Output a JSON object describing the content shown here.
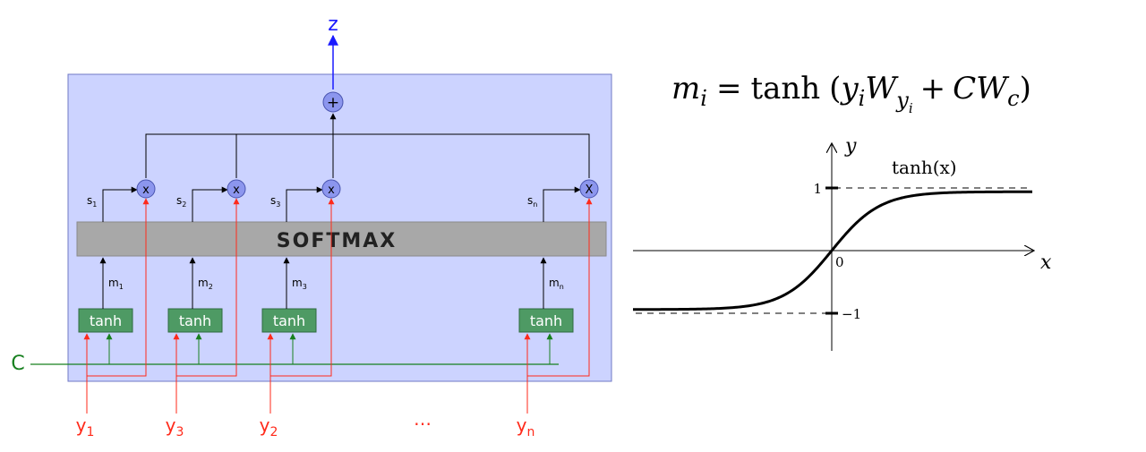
{
  "colors": {
    "panel_fill": "#ccd3ff",
    "panel_stroke": "#6f78c4",
    "softmax_fill": "#a8a8a8",
    "tanh_fill": "#4e9a64",
    "node_fill": "#8c96ee",
    "red": "#ff2a1a",
    "green": "#17801f",
    "blue": "#1a1aff",
    "black": "#000000"
  },
  "diagram": {
    "output_label": "z",
    "sum_symbol": "+",
    "softmax_label": "SOFTMAX",
    "context_label": "C",
    "ellipsis": "…",
    "units": [
      {
        "tanh": "tanh",
        "m": "m",
        "m_sub": "1",
        "s": "s",
        "s_sub": "1",
        "mult": "x",
        "y": "y",
        "y_sub": "1"
      },
      {
        "tanh": "tanh",
        "m": "m",
        "m_sub": "2",
        "s": "s",
        "s_sub": "2",
        "mult": "x",
        "y": "y",
        "y_sub": "3"
      },
      {
        "tanh": "tanh",
        "m": "m",
        "m_sub": "3",
        "s": "s",
        "s_sub": "3",
        "mult": "x",
        "y": "y",
        "y_sub": "2"
      },
      {
        "tanh": "tanh",
        "m": "m",
        "m_sub": "n",
        "s": "s",
        "s_sub": "n",
        "mult": "X",
        "y": "y",
        "y_sub": "n"
      }
    ]
  },
  "formula": {
    "lhs": "m",
    "lhs_sub": "i",
    "eq": "=",
    "func": "tanh",
    "open": "(",
    "y": "y",
    "y_sub": "i",
    "w": "W",
    "w_sub": "y",
    "w_subsub": "i",
    "plus": "+",
    "c": "CW",
    "c_sub": "c",
    "close": ")"
  },
  "plot": {
    "function": "tanh",
    "label": "tanh(x)",
    "x_axis": "x",
    "y_axis": "y",
    "origin_tick": "0",
    "upper_tick": "1",
    "lower_tick": "−1",
    "asymptotes": [
      1,
      -1
    ]
  }
}
